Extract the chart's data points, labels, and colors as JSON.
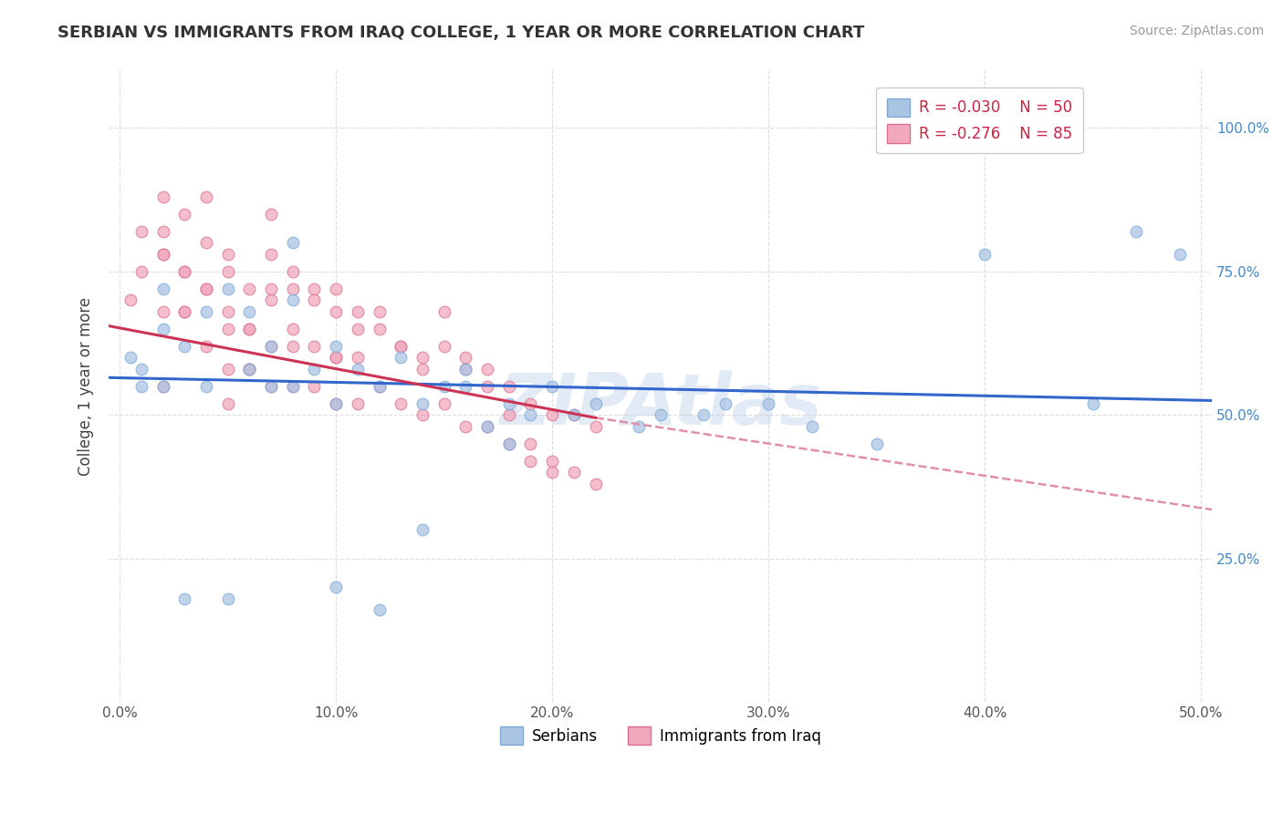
{
  "title": "SERBIAN VS IMMIGRANTS FROM IRAQ COLLEGE, 1 YEAR OR MORE CORRELATION CHART",
  "source": "Source: ZipAtlas.com",
  "ylabel": "College, 1 year or more",
  "xlim": [
    -0.005,
    0.505
  ],
  "ylim": [
    0.0,
    1.1
  ],
  "xtick_labels": [
    "0.0%",
    "10.0%",
    "20.0%",
    "30.0%",
    "40.0%",
    "50.0%"
  ],
  "xtick_vals": [
    0.0,
    0.1,
    0.2,
    0.3,
    0.4,
    0.5
  ],
  "ytick_labels": [
    "25.0%",
    "50.0%",
    "75.0%",
    "100.0%"
  ],
  "ytick_vals": [
    0.25,
    0.5,
    0.75,
    1.0
  ],
  "serbian_color": "#aac4e4",
  "iraq_color": "#f2a8bc",
  "serbian_edge": "#7aaad4",
  "iraq_edge": "#d87090",
  "line_serbian_color": "#3366cc",
  "line_iraq_solid_color": "#cc3355",
  "line_iraq_dashed_color": "#e090a8",
  "R_serbian": -0.03,
  "N_serbian": 50,
  "R_iraq": -0.276,
  "N_iraq": 85,
  "legend_label_serbian": "Serbians",
  "legend_label_iraq": "Immigrants from Iraq",
  "watermark": "ZIPAtlas",
  "background_color": "#ffffff",
  "grid_color": "#dddddd",
  "serbian_line_y0": 0.565,
  "serbian_line_y1": 0.525,
  "iraq_line_y0": 0.655,
  "iraq_line_y1_solid": 0.495,
  "iraq_line_x1_solid": 0.22,
  "iraq_line_y1_dashed": 0.335,
  "serbian_x": [
    0.005,
    0.01,
    0.02,
    0.02,
    0.03,
    0.04,
    0.04,
    0.05,
    0.06,
    0.06,
    0.07,
    0.07,
    0.08,
    0.08,
    0.09,
    0.1,
    0.1,
    0.11,
    0.12,
    0.13,
    0.14,
    0.15,
    0.16,
    0.17,
    0.18,
    0.19,
    0.2,
    0.21,
    0.22,
    0.24,
    0.25,
    0.27,
    0.28,
    0.3,
    0.32,
    0.35,
    0.4,
    0.45,
    0.47,
    0.49,
    0.1,
    0.12,
    0.14,
    0.16,
    0.18,
    0.05,
    0.03,
    0.02,
    0.01,
    0.08
  ],
  "serbian_y": [
    0.6,
    0.58,
    0.65,
    0.72,
    0.62,
    0.68,
    0.55,
    0.72,
    0.68,
    0.58,
    0.62,
    0.55,
    0.7,
    0.55,
    0.58,
    0.62,
    0.52,
    0.58,
    0.55,
    0.6,
    0.52,
    0.55,
    0.58,
    0.48,
    0.52,
    0.5,
    0.55,
    0.5,
    0.52,
    0.48,
    0.5,
    0.5,
    0.52,
    0.52,
    0.48,
    0.45,
    0.78,
    0.52,
    0.82,
    0.78,
    0.2,
    0.16,
    0.3,
    0.55,
    0.45,
    0.18,
    0.18,
    0.55,
    0.55,
    0.8
  ],
  "iraq_x": [
    0.005,
    0.01,
    0.01,
    0.02,
    0.02,
    0.02,
    0.03,
    0.03,
    0.03,
    0.04,
    0.04,
    0.04,
    0.05,
    0.05,
    0.05,
    0.05,
    0.06,
    0.06,
    0.06,
    0.07,
    0.07,
    0.07,
    0.07,
    0.08,
    0.08,
    0.08,
    0.09,
    0.09,
    0.1,
    0.1,
    0.1,
    0.11,
    0.11,
    0.11,
    0.12,
    0.12,
    0.13,
    0.13,
    0.14,
    0.14,
    0.15,
    0.15,
    0.16,
    0.16,
    0.17,
    0.17,
    0.18,
    0.18,
    0.19,
    0.19,
    0.2,
    0.2,
    0.21,
    0.21,
    0.22,
    0.22,
    0.02,
    0.03,
    0.04,
    0.05,
    0.06,
    0.07,
    0.08,
    0.09,
    0.1,
    0.11,
    0.12,
    0.13,
    0.14,
    0.15,
    0.16,
    0.17,
    0.18,
    0.19,
    0.2,
    0.04,
    0.05,
    0.03,
    0.02,
    0.02,
    0.06,
    0.08,
    0.07,
    0.09,
    0.1
  ],
  "iraq_y": [
    0.7,
    0.75,
    0.82,
    0.88,
    0.78,
    0.68,
    0.85,
    0.75,
    0.68,
    0.8,
    0.72,
    0.62,
    0.75,
    0.68,
    0.58,
    0.52,
    0.72,
    0.65,
    0.58,
    0.78,
    0.72,
    0.62,
    0.55,
    0.72,
    0.65,
    0.55,
    0.72,
    0.62,
    0.68,
    0.6,
    0.52,
    0.68,
    0.6,
    0.52,
    0.65,
    0.55,
    0.62,
    0.52,
    0.6,
    0.5,
    0.62,
    0.52,
    0.58,
    0.48,
    0.58,
    0.48,
    0.55,
    0.45,
    0.52,
    0.42,
    0.5,
    0.4,
    0.5,
    0.4,
    0.48,
    0.38,
    0.82,
    0.75,
    0.88,
    0.78,
    0.65,
    0.85,
    0.75,
    0.7,
    0.72,
    0.65,
    0.68,
    0.62,
    0.58,
    0.68,
    0.6,
    0.55,
    0.5,
    0.45,
    0.42,
    0.72,
    0.65,
    0.68,
    0.78,
    0.55,
    0.58,
    0.62,
    0.7,
    0.55,
    0.6
  ]
}
